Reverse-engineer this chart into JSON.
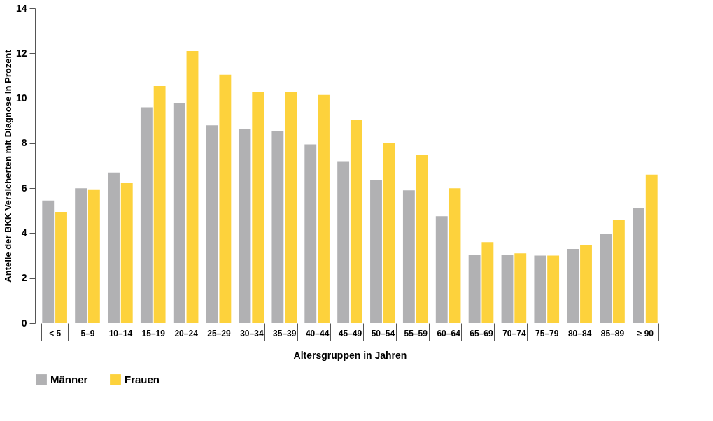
{
  "chart_data": {
    "type": "bar",
    "xlabel": "Altersgruppen in Jahren",
    "ylabel": "Anteile der BKK Versicherten mit Diagnose in Prozent",
    "categories": [
      "< 5",
      "5–9",
      "10–14",
      "15–19",
      "20–24",
      "25–29",
      "30–34",
      "35–39",
      "40–44",
      "45–49",
      "50–54",
      "55–59",
      "60–64",
      "65–69",
      "70–74",
      "75–79",
      "80–84",
      "85–89",
      "≥ 90"
    ],
    "series": [
      {
        "name": "Männer",
        "color": "#b1b1b3",
        "values": [
          5.45,
          6.0,
          6.7,
          9.6,
          9.8,
          8.8,
          8.65,
          8.55,
          7.95,
          7.2,
          6.35,
          5.9,
          4.75,
          3.05,
          3.05,
          3.0,
          3.3,
          3.95,
          5.1
        ]
      },
      {
        "name": "Frauen",
        "color": "#fdd23c",
        "values": [
          4.95,
          5.95,
          6.25,
          10.55,
          12.1,
          11.05,
          10.3,
          10.3,
          10.15,
          9.05,
          8.0,
          7.5,
          6.0,
          3.6,
          3.1,
          3.0,
          3.45,
          4.6,
          6.6
        ]
      }
    ],
    "ylim": [
      0,
      14
    ],
    "yticks": [
      0,
      2,
      4,
      6,
      8,
      10,
      12,
      14
    ],
    "grid": false,
    "legend": "bottom"
  }
}
